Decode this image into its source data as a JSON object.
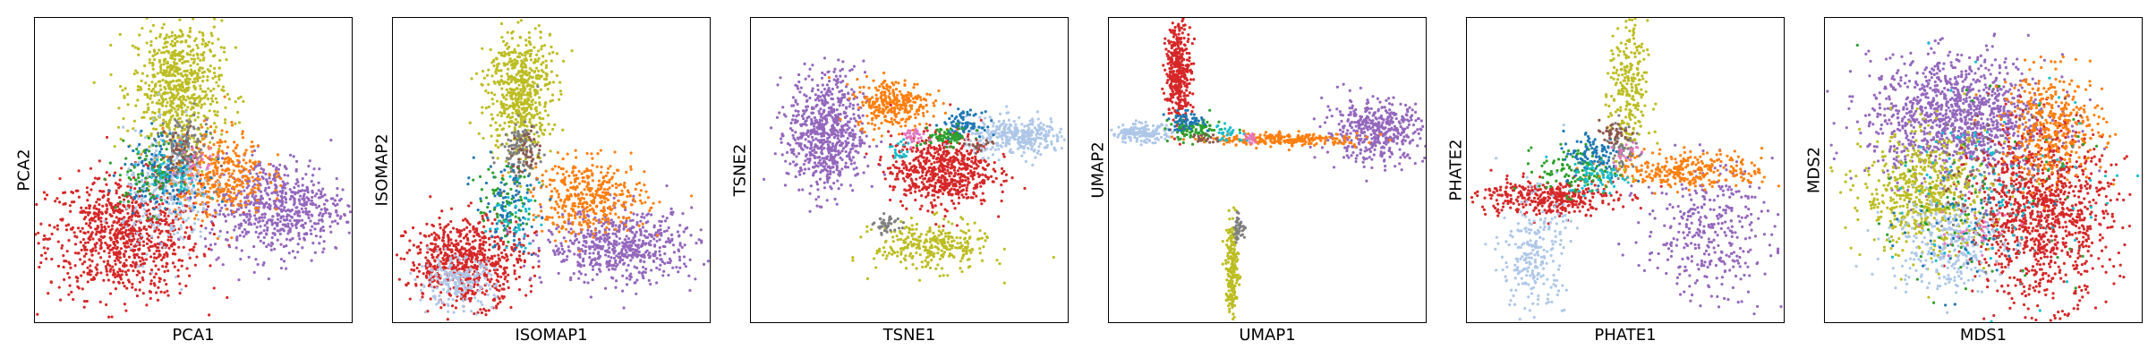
{
  "figure": {
    "colors": [
      "#d62728",
      "#aec7e8",
      "#1f77b4",
      "#2ca02c",
      "#e377c2",
      "#7f7f7f",
      "#8c564b",
      "#bcbd22",
      "#17becf",
      "#ff7f0e",
      "#9467bd"
    ]
  },
  "chart_data": [
    {
      "type": "scatter",
      "embedding": "PCA",
      "xlabel": "PCA1",
      "ylabel": "PCA2",
      "grid": false,
      "xlim": [
        0,
        100
      ],
      "ylim": [
        0,
        100
      ],
      "clusters": [
        {
          "color": "#d62728",
          "x": 28,
          "y": 28,
          "sx": 12,
          "sy": 10,
          "n": 900
        },
        {
          "color": "#bcbd22",
          "x": 45,
          "y": 77,
          "sx": 7,
          "sy": 11,
          "n": 700
        },
        {
          "color": "#9467bd",
          "x": 76,
          "y": 38,
          "sx": 11,
          "sy": 8,
          "n": 650
        },
        {
          "color": "#ff7f0e",
          "x": 57,
          "y": 49,
          "sx": 8,
          "sy": 7,
          "n": 400
        },
        {
          "color": "#aec7e8",
          "x": 42,
          "y": 42,
          "sx": 7,
          "sy": 10,
          "n": 280
        },
        {
          "color": "#1f77b4",
          "x": 40,
          "y": 50,
          "sx": 6,
          "sy": 6,
          "n": 140
        },
        {
          "color": "#2ca02c",
          "x": 36,
          "y": 48,
          "sx": 5,
          "sy": 6,
          "n": 80
        },
        {
          "color": "#7f7f7f",
          "x": 47,
          "y": 58,
          "sx": 4,
          "sy": 5,
          "n": 110
        },
        {
          "color": "#8c564b",
          "x": 46,
          "y": 55,
          "sx": 3,
          "sy": 4,
          "n": 50
        },
        {
          "color": "#17becf",
          "x": 44,
          "y": 48,
          "sx": 5,
          "sy": 5,
          "n": 50
        },
        {
          "color": "#e377c2",
          "x": 50,
          "y": 52,
          "sx": 4,
          "sy": 4,
          "n": 25
        }
      ]
    },
    {
      "type": "scatter",
      "embedding": "ISOMAP",
      "xlabel": "ISOMAP1",
      "ylabel": "ISOMAP2",
      "grid": false,
      "xlim": [
        0,
        100
      ],
      "ylim": [
        0,
        100
      ],
      "clusters": [
        {
          "color": "#d62728",
          "x": 23,
          "y": 20,
          "sx": 9,
          "sy": 7,
          "n": 700
        },
        {
          "color": "#aec7e8",
          "x": 20,
          "y": 13,
          "sx": 6,
          "sy": 4,
          "n": 200
        },
        {
          "color": "#9467bd",
          "x": 72,
          "y": 25,
          "sx": 12,
          "sy": 6,
          "n": 600
        },
        {
          "color": "#ff7f0e",
          "x": 62,
          "y": 41,
          "sx": 9,
          "sy": 6,
          "n": 400
        },
        {
          "color": "#bcbd22",
          "x": 40,
          "y": 76,
          "sx": 5,
          "sy": 11,
          "n": 600
        },
        {
          "color": "#7f7f7f",
          "x": 40,
          "y": 56,
          "sx": 3,
          "sy": 5,
          "n": 120
        },
        {
          "color": "#1f77b4",
          "x": 36,
          "y": 38,
          "sx": 5,
          "sy": 7,
          "n": 100
        },
        {
          "color": "#2ca02c",
          "x": 35,
          "y": 40,
          "sx": 4,
          "sy": 6,
          "n": 60
        },
        {
          "color": "#17becf",
          "x": 38,
          "y": 35,
          "sx": 4,
          "sy": 5,
          "n": 40
        },
        {
          "color": "#8c564b",
          "x": 42,
          "y": 56,
          "sx": 2,
          "sy": 4,
          "n": 40
        }
      ]
    },
    {
      "type": "scatter",
      "embedding": "TSNE",
      "xlabel": "TSNE1",
      "ylabel": "TSNE2",
      "grid": false,
      "xlim": [
        0,
        100
      ],
      "ylim": [
        0,
        100
      ],
      "clusters": [
        {
          "color": "#9467bd",
          "x": 24,
          "y": 62,
          "sx": 6,
          "sy": 10,
          "n": 700
        },
        {
          "color": "#ff7f0e",
          "x": 45,
          "y": 72,
          "sx": 6,
          "sy": 4,
          "n": 300
        },
        {
          "color": "#d62728",
          "x": 60,
          "y": 50,
          "sx": 8,
          "sy": 6,
          "n": 650
        },
        {
          "color": "#aec7e8",
          "x": 84,
          "y": 61,
          "sx": 8,
          "sy": 3,
          "n": 350
        },
        {
          "color": "#1f77b4",
          "x": 67,
          "y": 65,
          "sx": 3,
          "sy": 2,
          "n": 80
        },
        {
          "color": "#2ca02c",
          "x": 62,
          "y": 61,
          "sx": 4,
          "sy": 1.5,
          "n": 70
        },
        {
          "color": "#e377c2",
          "x": 51,
          "y": 61,
          "sx": 2,
          "sy": 1.5,
          "n": 30
        },
        {
          "color": "#17becf",
          "x": 47,
          "y": 56,
          "sx": 1.5,
          "sy": 2,
          "n": 20
        },
        {
          "color": "#8c564b",
          "x": 72,
          "y": 58,
          "sx": 2,
          "sy": 1.5,
          "n": 20
        },
        {
          "color": "#bcbd22",
          "x": 57,
          "y": 25,
          "sx": 9,
          "sy": 4,
          "n": 300
        },
        {
          "color": "#7f7f7f",
          "x": 43,
          "y": 32,
          "sx": 2,
          "sy": 1.5,
          "n": 40
        }
      ]
    },
    {
      "type": "scatter",
      "embedding": "UMAP",
      "xlabel": "UMAP1",
      "ylabel": "UMAP2",
      "grid": false,
      "xlim": [
        0,
        100
      ],
      "ylim": [
        0,
        100
      ],
      "clusters": [
        {
          "color": "#d62728",
          "x": 22,
          "y": 82,
          "sx": 2,
          "sy": 8,
          "n": 380
        },
        {
          "color": "#9467bd",
          "x": 84,
          "y": 63,
          "sx": 8,
          "sy": 5,
          "n": 450
        },
        {
          "color": "#ff7f0e",
          "x": 56,
          "y": 60,
          "sx": 12,
          "sy": 1,
          "n": 250
        },
        {
          "color": "#aec7e8",
          "x": 10,
          "y": 62,
          "sx": 5,
          "sy": 1.5,
          "n": 160
        },
        {
          "color": "#2ca02c",
          "x": 27,
          "y": 63,
          "sx": 4,
          "sy": 2,
          "n": 100
        },
        {
          "color": "#1f77b4",
          "x": 24,
          "y": 66,
          "sx": 3,
          "sy": 1.5,
          "n": 60
        },
        {
          "color": "#17becf",
          "x": 38,
          "y": 62,
          "sx": 3,
          "sy": 1.5,
          "n": 30
        },
        {
          "color": "#8c564b",
          "x": 30,
          "y": 60,
          "sx": 2,
          "sy": 1,
          "n": 20
        },
        {
          "color": "#e377c2",
          "x": 45,
          "y": 61,
          "sx": 1,
          "sy": 1,
          "n": 15
        },
        {
          "color": "#bcbd22",
          "x": 39,
          "y": 17,
          "sx": 1,
          "sy": 8,
          "n": 200
        },
        {
          "color": "#7f7f7f",
          "x": 41,
          "y": 31,
          "sx": 1,
          "sy": 2,
          "n": 40
        }
      ]
    },
    {
      "type": "scatter",
      "embedding": "PHATE",
      "xlabel": "PHATE1",
      "ylabel": "PHATE2",
      "grid": false,
      "xlim": [
        0,
        100
      ],
      "ylim": [
        0,
        100
      ],
      "clusters": [
        {
          "color": "#d62728",
          "x": 25,
          "y": 41,
          "sx": 11,
          "sy": 3,
          "n": 380
        },
        {
          "color": "#aec7e8",
          "x": 21,
          "y": 22,
          "sx": 5,
          "sy": 10,
          "n": 250
        },
        {
          "color": "#9467bd",
          "x": 76,
          "y": 30,
          "sx": 10,
          "sy": 11,
          "n": 350
        },
        {
          "color": "#ff7f0e",
          "x": 70,
          "y": 50,
          "sx": 12,
          "sy": 3,
          "n": 300
        },
        {
          "color": "#bcbd22",
          "x": 51,
          "y": 75,
          "sx": 3,
          "sy": 12,
          "n": 250
        },
        {
          "color": "#2ca02c",
          "x": 35,
          "y": 50,
          "sx": 6,
          "sy": 4,
          "n": 120
        },
        {
          "color": "#1f77b4",
          "x": 40,
          "y": 55,
          "sx": 5,
          "sy": 4,
          "n": 100
        },
        {
          "color": "#17becf",
          "x": 42,
          "y": 48,
          "sx": 5,
          "sy": 3,
          "n": 60
        },
        {
          "color": "#7f7f7f",
          "x": 49,
          "y": 58,
          "sx": 2,
          "sy": 4,
          "n": 50
        },
        {
          "color": "#8c564b",
          "x": 46,
          "y": 62,
          "sx": 3,
          "sy": 2,
          "n": 40
        },
        {
          "color": "#e377c2",
          "x": 50,
          "y": 56,
          "sx": 2,
          "sy": 2,
          "n": 20
        }
      ]
    },
    {
      "type": "scatter",
      "embedding": "MDS",
      "xlabel": "MDS1",
      "ylabel": "MDS2",
      "grid": false,
      "xlim": [
        0,
        100
      ],
      "ylim": [
        0,
        100
      ],
      "clusters": [
        {
          "color": "#9467bd",
          "x": 42,
          "y": 67,
          "sx": 14,
          "sy": 10,
          "n": 1200
        },
        {
          "color": "#d62728",
          "x": 68,
          "y": 35,
          "sx": 11,
          "sy": 14,
          "n": 1100
        },
        {
          "color": "#bcbd22",
          "x": 32,
          "y": 42,
          "sx": 10,
          "sy": 10,
          "n": 600
        },
        {
          "color": "#ff7f0e",
          "x": 72,
          "y": 64,
          "sx": 8,
          "sy": 9,
          "n": 400
        },
        {
          "color": "#aec7e8",
          "x": 38,
          "y": 26,
          "sx": 9,
          "sy": 8,
          "n": 300
        },
        {
          "color": "#17becf",
          "x": 58,
          "y": 44,
          "sx": 16,
          "sy": 16,
          "n": 100
        },
        {
          "color": "#2ca02c",
          "x": 48,
          "y": 40,
          "sx": 16,
          "sy": 16,
          "n": 80
        },
        {
          "color": "#1f77b4",
          "x": 45,
          "y": 30,
          "sx": 10,
          "sy": 10,
          "n": 60
        },
        {
          "color": "#7f7f7f",
          "x": 50,
          "y": 45,
          "sx": 14,
          "sy": 14,
          "n": 50
        },
        {
          "color": "#e377c2",
          "x": 48,
          "y": 30,
          "sx": 6,
          "sy": 5,
          "n": 30
        },
        {
          "color": "#8c564b",
          "x": 55,
          "y": 50,
          "sx": 14,
          "sy": 14,
          "n": 40
        }
      ]
    }
  ]
}
